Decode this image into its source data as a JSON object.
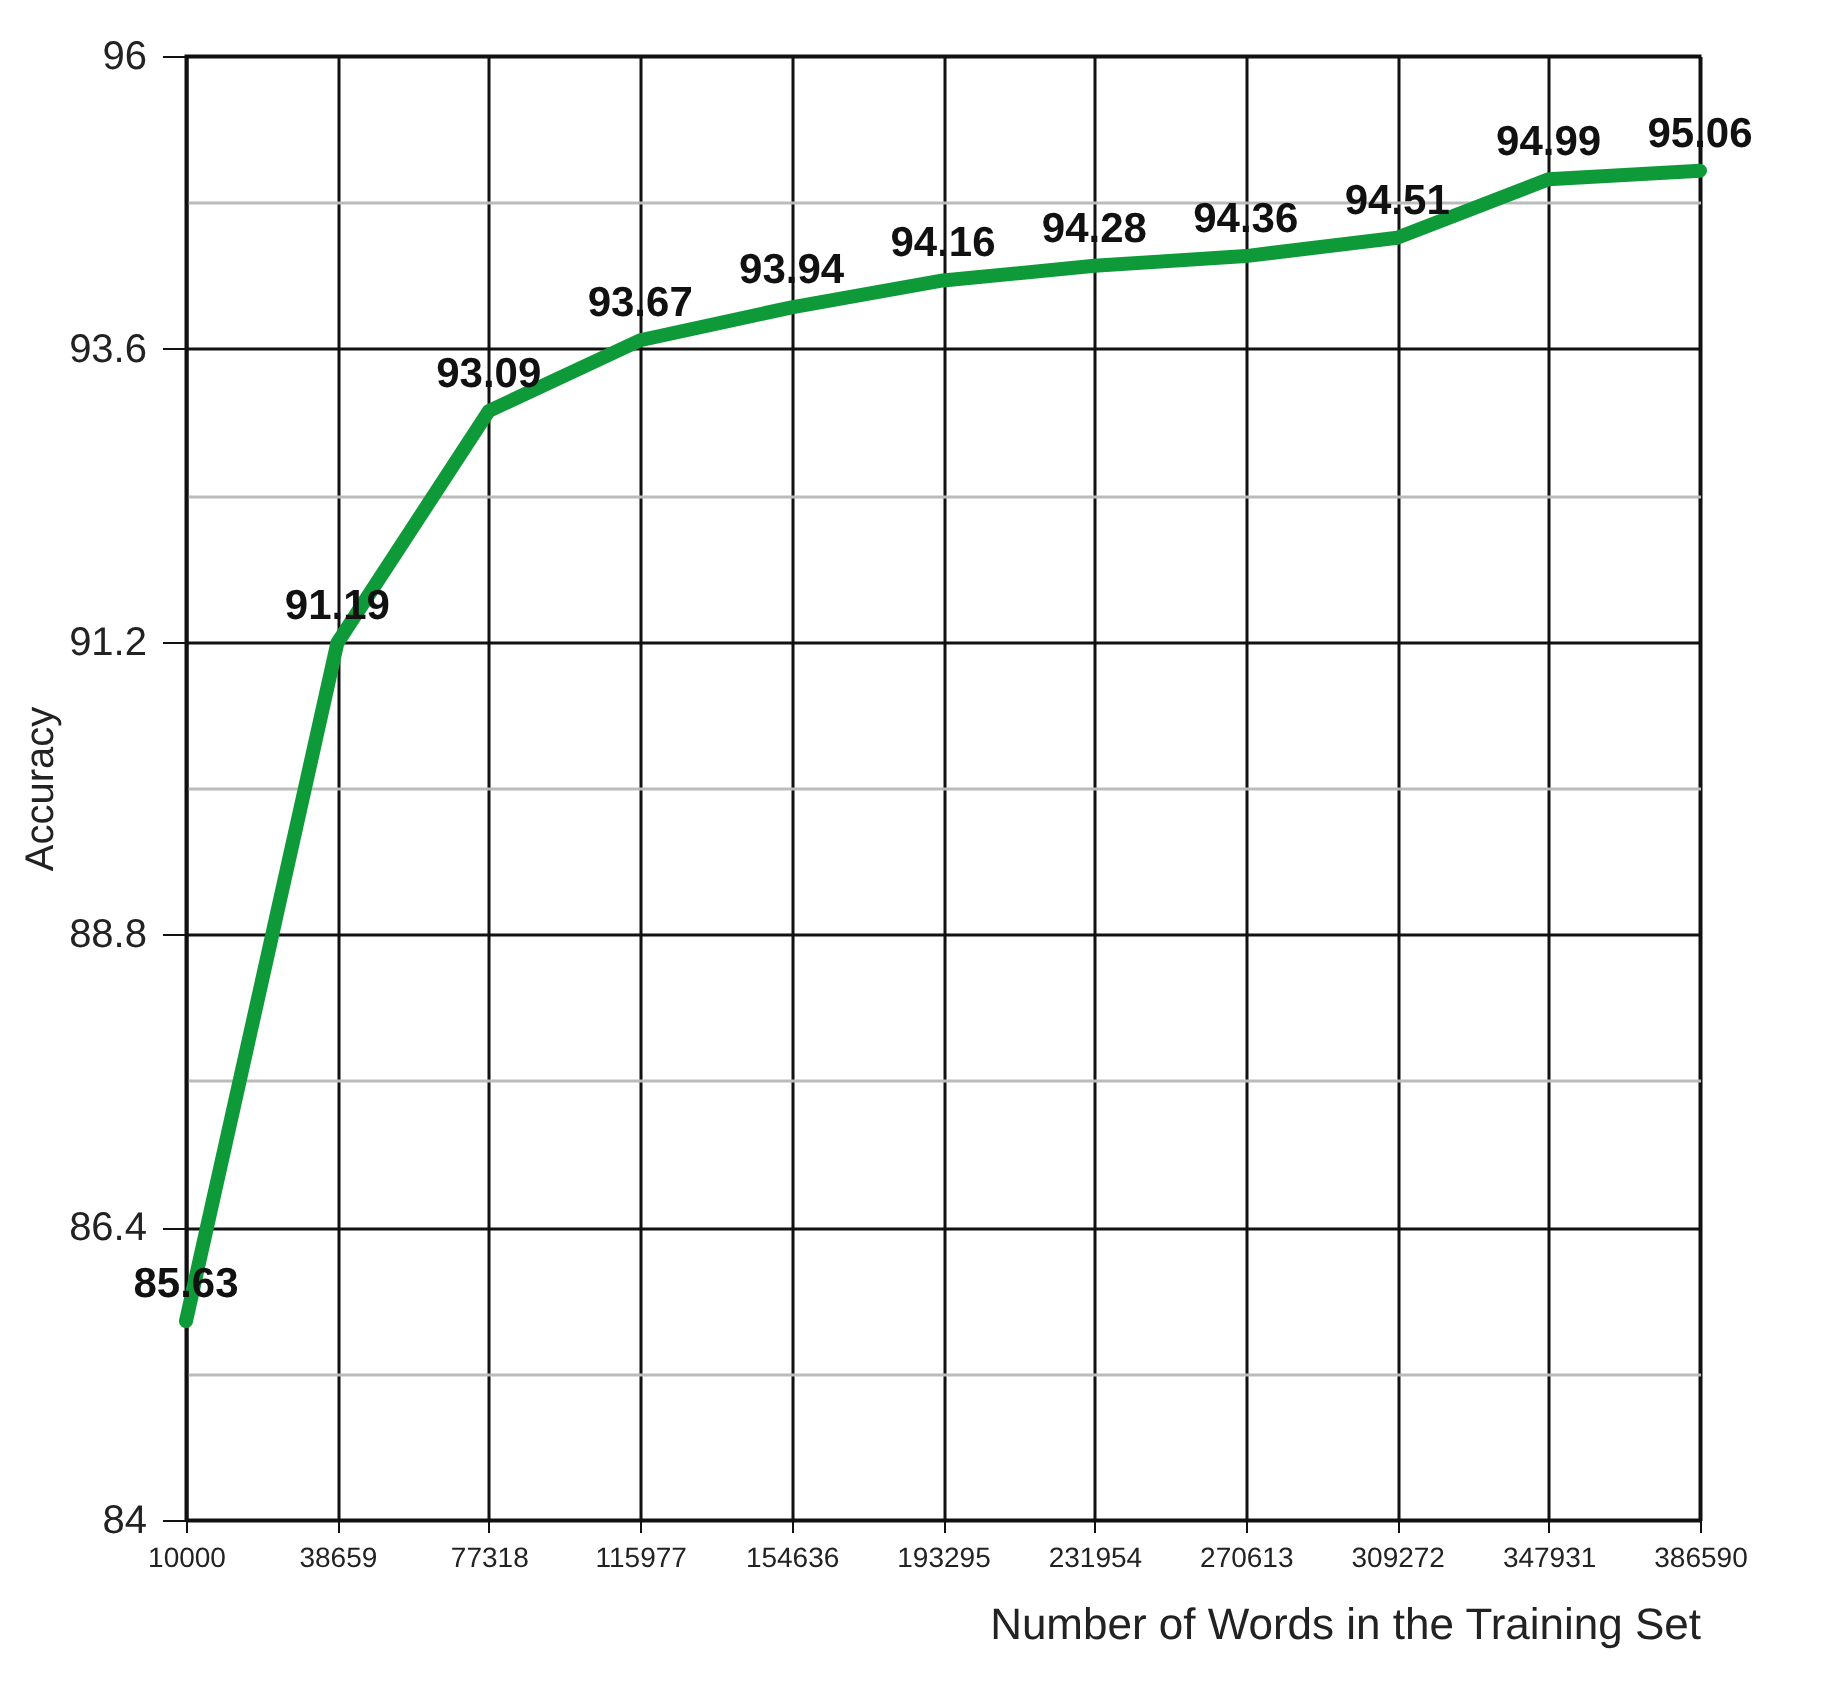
{
  "chart_data": {
    "type": "line",
    "xlabel": "Number of Words in the Training Set",
    "ylabel": "Accuracy",
    "categories": [
      "10000",
      "38659",
      "77318",
      "115977",
      "154636",
      "193295",
      "231954",
      "270613",
      "309272",
      "347931",
      "386590"
    ],
    "series": [
      {
        "color": "#0f9a3a",
        "values": [
          85.63,
          91.19,
          93.09,
          93.67,
          93.94,
          94.16,
          94.28,
          94.36,
          94.51,
          94.99,
          95.06
        ]
      }
    ],
    "ylim": [
      84,
      96
    ],
    "yticks": [
      84,
      {
        "value": 85.2,
        "label": null
      },
      86.4,
      {
        "value": 87.6,
        "label": null
      },
      88.8,
      {
        "value": 90,
        "label": null
      },
      91.2,
      {
        "value": 92.4,
        "label": null
      },
      93.6,
      {
        "value": 94.8,
        "label": null
      },
      96
    ],
    "grid": true,
    "data_labels": true,
    "marker": "none",
    "line_style": "solid"
  }
}
